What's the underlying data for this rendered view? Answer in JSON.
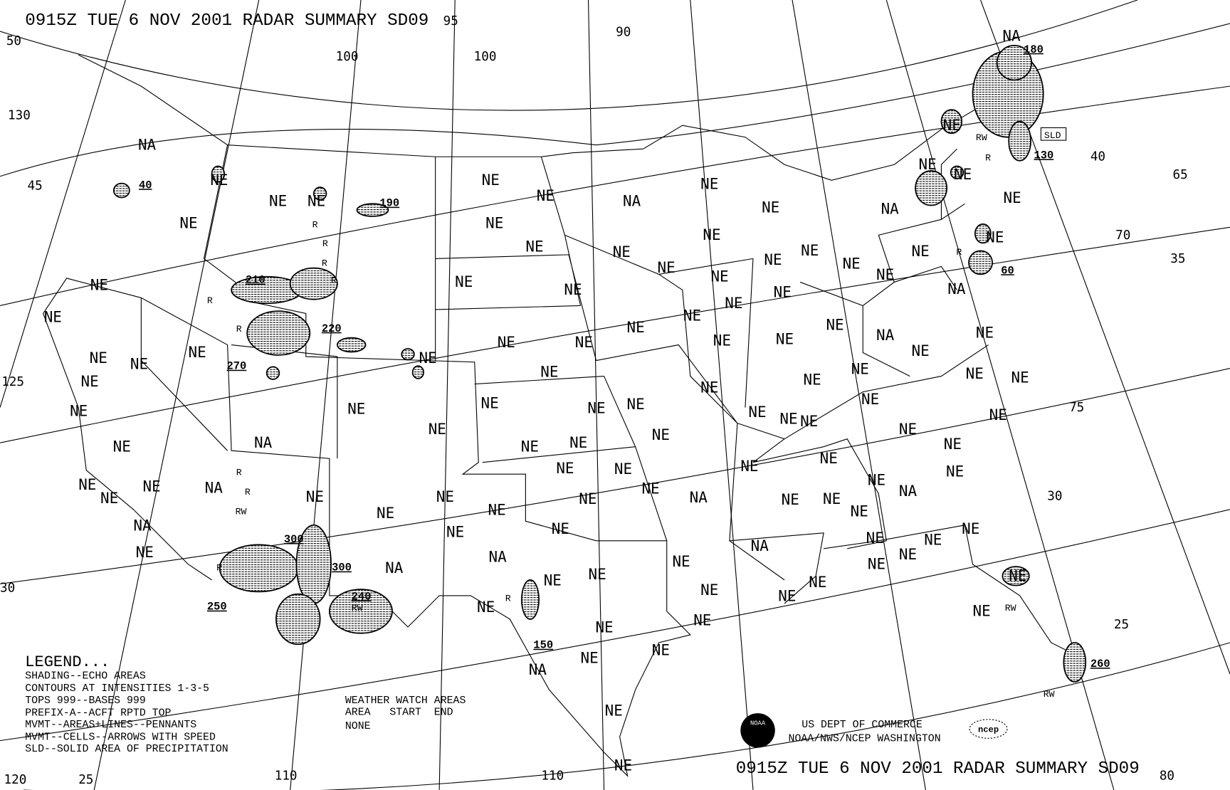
{
  "title_top": "0915Z TUE  6 NOV 2001 RADAR SUMMARY SD09",
  "title_bottom": "0915Z TUE  6 NOV 2001 RADAR SUMMARY SD09",
  "grid_labels": [
    "50",
    "130",
    "45",
    "125",
    "30",
    "120",
    "25",
    "110",
    "100",
    "110",
    "100",
    "90",
    "95",
    "40",
    "65",
    "70",
    "35",
    "75",
    "30",
    "25",
    "80"
  ],
  "region_labels": [
    "NA",
    "NA",
    "NE",
    "NE",
    "NE",
    "NE",
    "NE",
    "NE",
    "NE",
    "NA",
    "NE",
    "NE",
    "NE",
    "NE",
    "NE",
    "NE",
    "NA",
    "NE",
    "NE",
    "NE",
    "NE",
    "NA",
    "NE",
    "NE",
    "NE",
    "NE",
    "NE",
    "NE",
    "NE",
    "NE",
    "NE",
    "NE",
    "NE",
    "NE",
    "NE",
    "NE",
    "NE",
    "NE",
    "NE",
    "NE",
    "NE",
    "NE",
    "NE",
    "NE",
    "NE",
    "NA",
    "NE",
    "NE",
    "NE",
    "NE",
    "NE",
    "NE",
    "NE",
    "NE",
    "NE",
    "NE",
    "NE",
    "NE",
    "NE",
    "NE",
    "NE",
    "NE",
    "NE",
    "NE",
    "NE",
    "NE",
    "NE",
    "NE",
    "NE",
    "NE",
    "NA",
    "NE",
    "NE",
    "NE",
    "NE",
    "NE",
    "NE",
    "NE",
    "NE",
    "NA",
    "NE",
    "NE",
    "NE",
    "NA",
    "NE",
    "NE",
    "NA",
    "NE",
    "NE",
    "NE",
    "NE",
    "NE",
    "NE",
    "NA",
    "NE",
    "NE",
    "NE",
    "NE",
    "NE",
    "NA",
    "NA",
    "NE",
    "NA",
    "NE",
    "NE",
    "NE",
    "NE",
    "NE",
    "NE",
    "NE",
    "NE",
    "NE",
    "NE",
    "NE",
    "NE",
    "NE",
    "NE",
    "NA",
    "NE",
    "NE",
    "NE",
    "NE",
    "NE"
  ],
  "precip_labels": [
    "R",
    "R",
    "R",
    "R",
    "R",
    "R",
    "R",
    "R",
    "RW",
    "R",
    "R",
    "RW",
    "R",
    "R",
    "RW",
    "RW",
    "RW"
  ],
  "echo_tops": [
    "40",
    "190",
    "210",
    "220",
    "270",
    "300",
    "300",
    "240",
    "250",
    "150",
    "180",
    "130",
    "60",
    "260"
  ],
  "sld_label": "SLD",
  "legend": {
    "heading": "LEGEND...",
    "lines": [
      "SHADING--ECHO AREAS",
      "CONTOURS AT INTENSITIES 1-3-5",
      "TOPS 999--BASES 999",
      "PREFIX-A--ACFT RPTD TOP",
      "MVMT--AREAS+LINES--PENNANTS",
      "MVMT--CELLS--ARROWS WITH SPEED",
      "SLD--SOLID AREA OF PRECIPITATION"
    ]
  },
  "watch": {
    "heading": "WEATHER WATCH AREAS",
    "columns": "AREA   START  END",
    "value": "NONE"
  },
  "credits": {
    "line1": "US DEPT OF COMMERCE",
    "line2": "NOAA/NWS/NCEP WASHINGTON",
    "noaa_logo": "NOAA",
    "ncep_logo": "ncep"
  }
}
